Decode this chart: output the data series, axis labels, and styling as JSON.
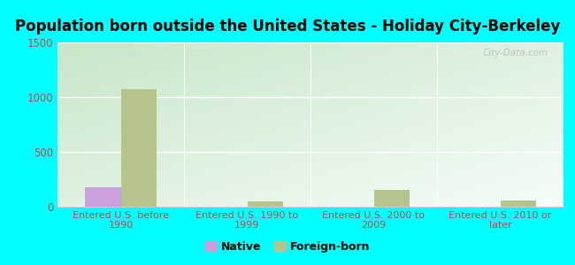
{
  "title": "Population born outside the United States - Holiday City-Berkeley",
  "categories": [
    "Entered U.S. before\n1990",
    "Entered U.S. 1990 to\n1999",
    "Entered U.S. 2000 to\n2009",
    "Entered U.S. 2010 or\nlater"
  ],
  "native_values": [
    175,
    0,
    0,
    0
  ],
  "foreign_values": [
    1075,
    50,
    150,
    55
  ],
  "native_color": "#c9a0dc",
  "foreign_color": "#b5c48a",
  "ylim": [
    0,
    1500
  ],
  "yticks": [
    0,
    500,
    1000,
    1500
  ],
  "outer_bg": "#00ffff",
  "bar_width": 0.28,
  "title_fontsize": 12,
  "tick_label_color": "#cc4444",
  "watermark": "City-Data.com",
  "grad_top_left": "#c8e8c8",
  "grad_bottom_right": "#f0faf5"
}
